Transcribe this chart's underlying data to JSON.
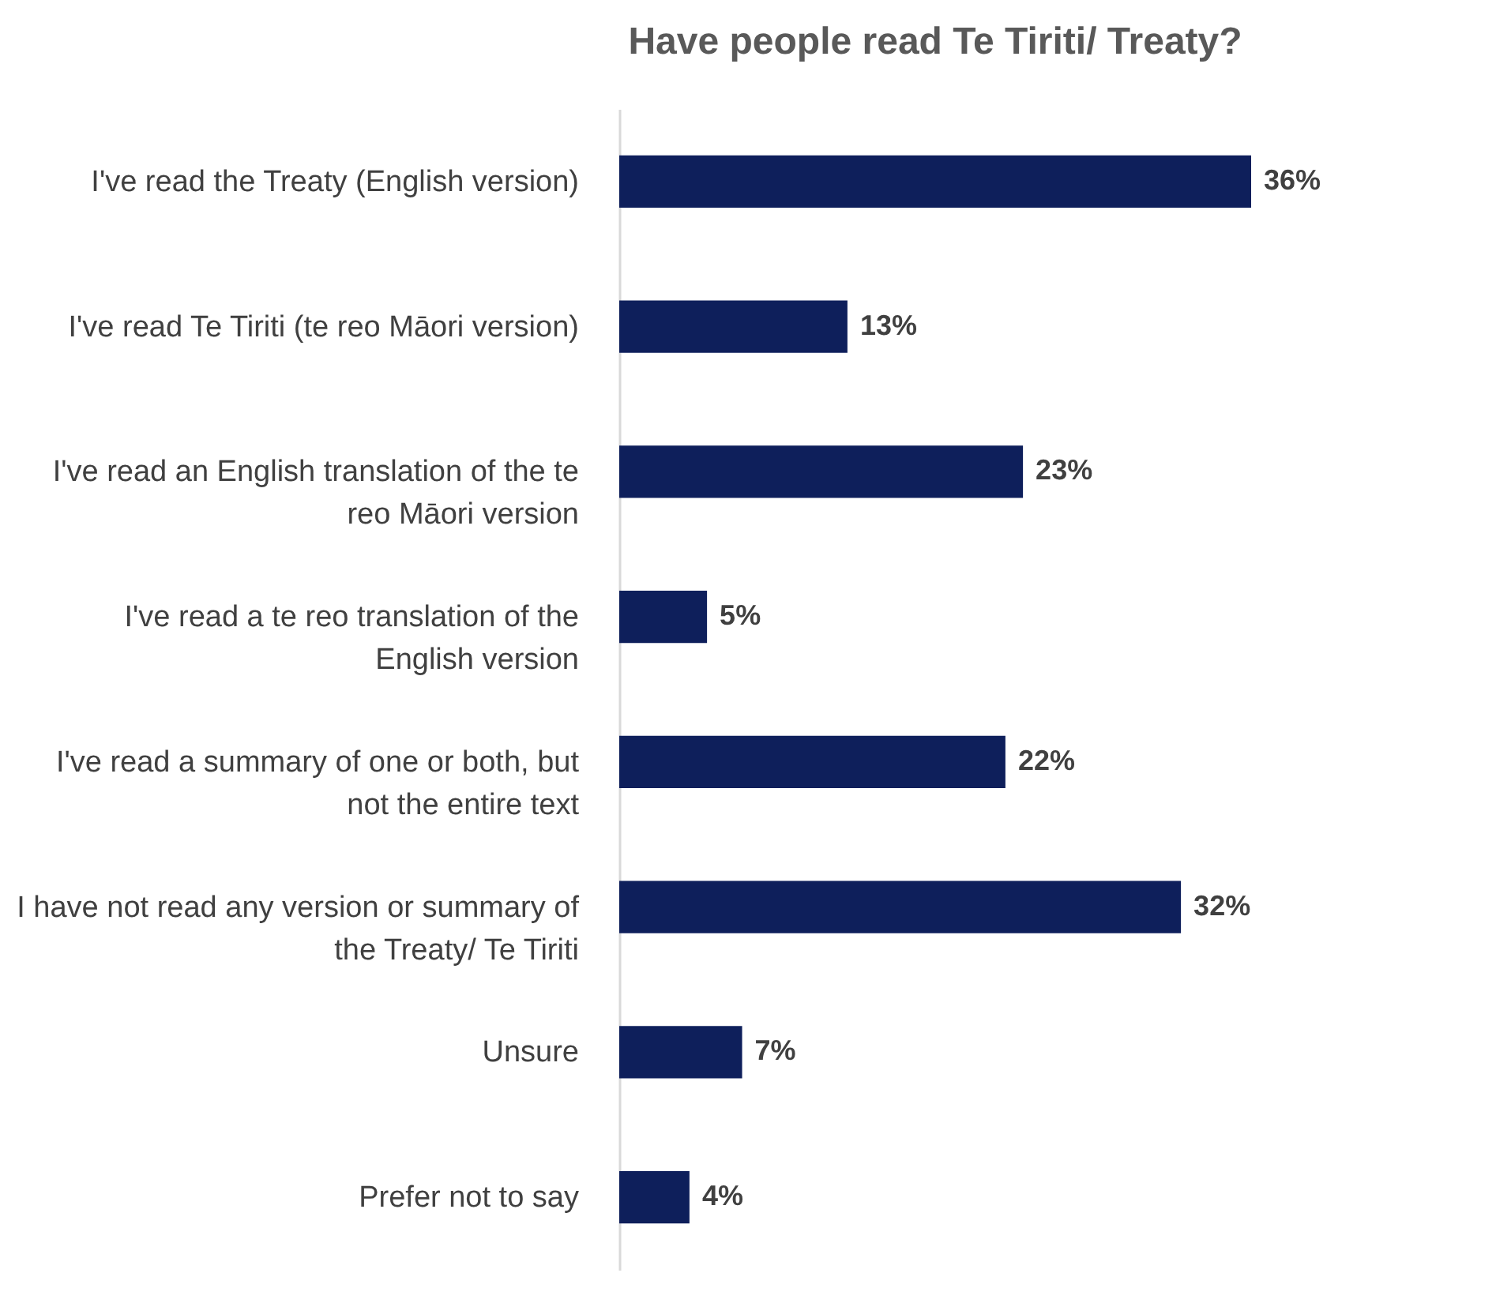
{
  "chart_data": {
    "type": "bar",
    "orientation": "horizontal",
    "title": "Have people read Te Tiriti/ Treaty?",
    "categories": [
      "I've read the Treaty (English version)",
      "I've read Te Tiriti (te reo Māori version)",
      "I've read an English translation of the te reo Māori version",
      "I've read a te reo translation of the English version",
      "I've read a summary of one or both, but not the entire text",
      "I have not read any version or summary of the Treaty/ Te Tiriti",
      "Unsure",
      "Prefer not to say"
    ],
    "values": [
      36,
      13,
      23,
      5,
      22,
      32,
      7,
      4
    ],
    "value_labels": [
      "36%",
      "13%",
      "23%",
      "5%",
      "22%",
      "32%",
      "7%",
      "4%"
    ],
    "color": "#0e1f5b"
  }
}
